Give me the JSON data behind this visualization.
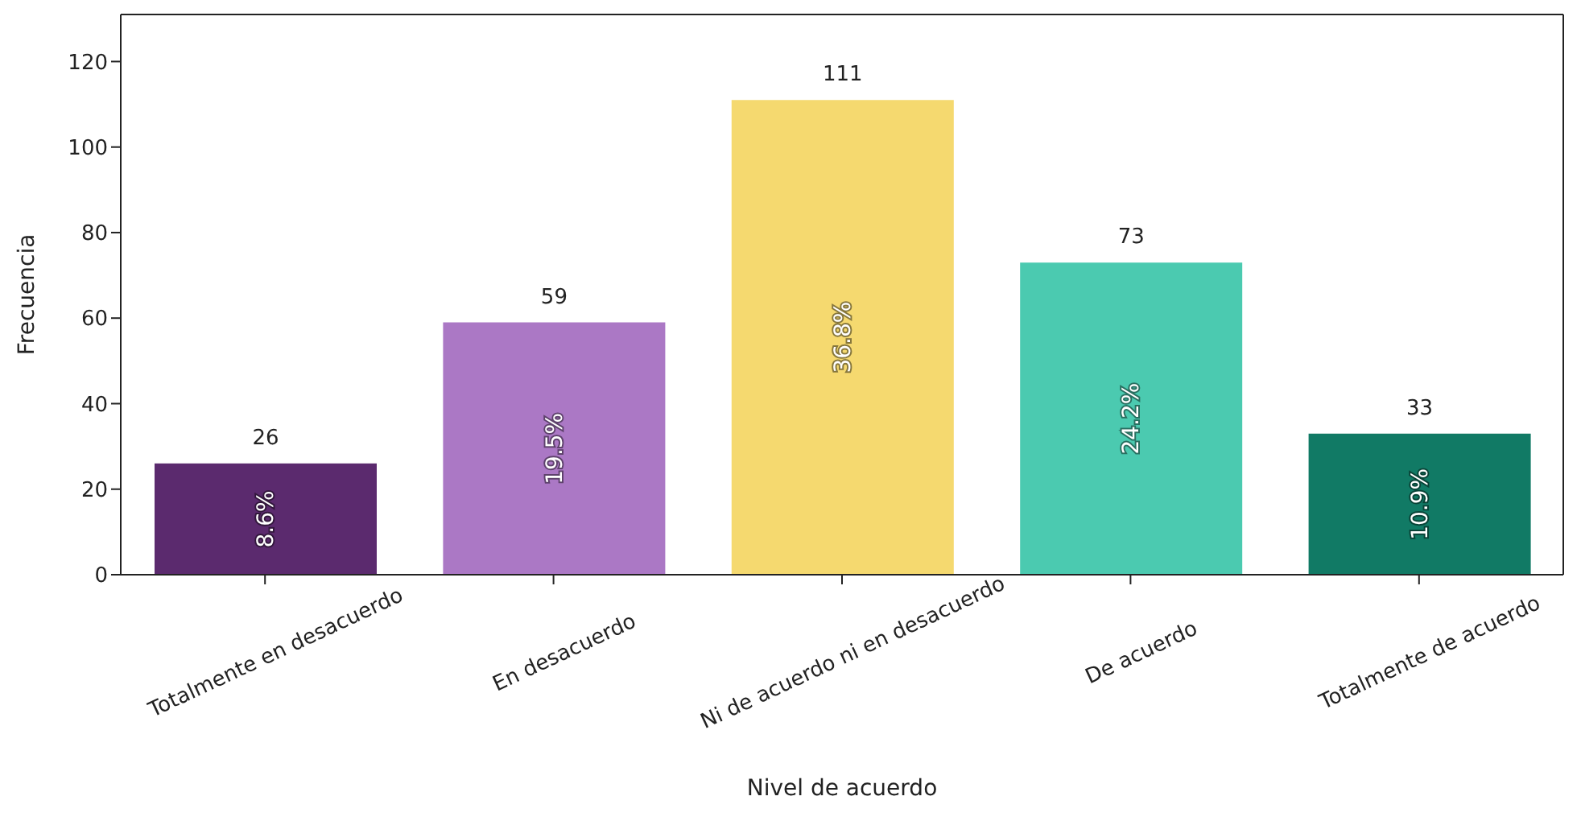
{
  "chart_data": {
    "type": "bar",
    "xlabel": "Nivel de acuerdo",
    "ylabel": "Frecuencia",
    "categories": [
      "Totalmente en desacuerdo",
      "En desacuerdo",
      "Ni de acuerdo ni en desacuerdo",
      "De acuerdo",
      "Totalmente de acuerdo"
    ],
    "values": [
      26,
      59,
      111,
      73,
      33
    ],
    "colors": [
      "#5b2a6e",
      "#ab78c5",
      "#f5d96f",
      "#4bcab0",
      "#117a65"
    ],
    "ylim": [
      0,
      131
    ],
    "yticks": [
      0,
      20,
      40,
      60,
      80,
      100,
      120
    ],
    "grid": false,
    "data_labels": true,
    "annotations": [
      "8.6%",
      "19.5%",
      "36.8%",
      "24.2%",
      "10.9%"
    ]
  }
}
